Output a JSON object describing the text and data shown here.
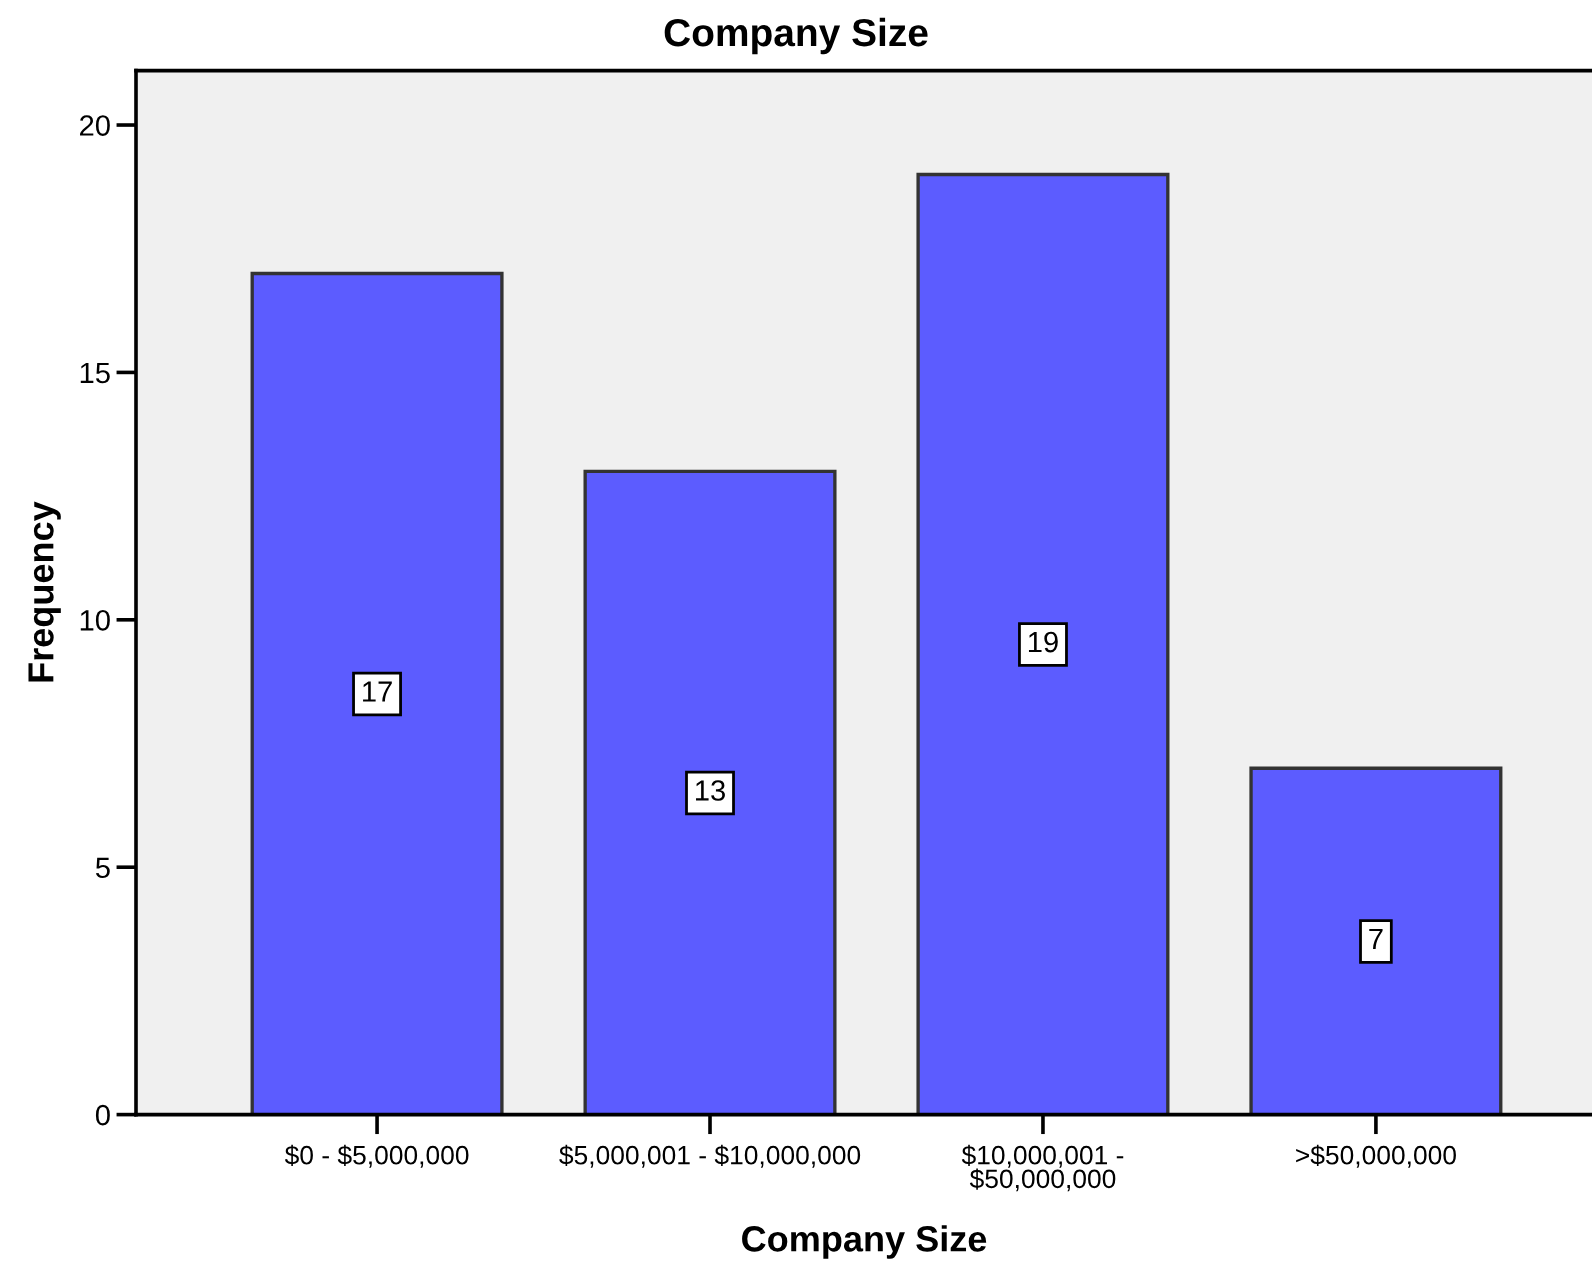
{
  "chart_data": {
    "type": "bar",
    "title": "Company Size",
    "xlabel": "Company Size",
    "ylabel": "Frequency",
    "categories": [
      "$0 - $5,000,000",
      "$5,000,001 - $10,000,000",
      "$10,000,001 -\n$50,000,000",
      ">$50,000,000"
    ],
    "values": [
      17,
      13,
      19,
      7
    ],
    "color": "#5c5cff",
    "ylim": [
      0,
      21.1
    ],
    "yticks": [
      0,
      5,
      10,
      15,
      20
    ],
    "data_labels": true
  }
}
